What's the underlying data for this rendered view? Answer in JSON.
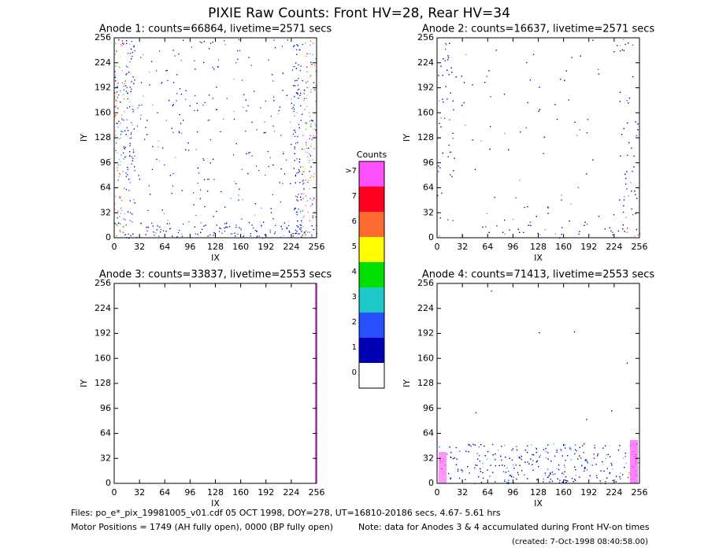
{
  "title": "PIXIE Raw Counts:  Front HV=28, Rear HV=34",
  "chart_data": [
    {
      "type": "heatmap",
      "title": "Anode 1: counts=66864, livetime=2571 secs",
      "xlabel": "IX",
      "ylabel": "IY",
      "xlim": [
        0,
        256
      ],
      "ylim": [
        0,
        256
      ],
      "xticks": [
        0,
        32,
        64,
        96,
        128,
        160,
        192,
        224,
        256
      ],
      "yticks": [
        0,
        32,
        64,
        96,
        128,
        160,
        192,
        224,
        256
      ]
    },
    {
      "type": "heatmap",
      "title": "Anode 2: counts=16637, livetime=2571 secs",
      "xlabel": "IX",
      "ylabel": "IY",
      "xlim": [
        0,
        256
      ],
      "ylim": [
        0,
        256
      ],
      "xticks": [
        0,
        32,
        64,
        96,
        128,
        160,
        192,
        224,
        256
      ],
      "yticks": [
        0,
        32,
        64,
        96,
        128,
        160,
        192,
        224,
        256
      ]
    },
    {
      "type": "heatmap",
      "title": "Anode 3: counts=33837, livetime=2553 secs",
      "xlabel": "IX",
      "ylabel": "IY",
      "xlim": [
        0,
        256
      ],
      "ylim": [
        0,
        256
      ],
      "xticks": [
        0,
        32,
        64,
        96,
        128,
        160,
        192,
        224,
        256
      ],
      "yticks": [
        0,
        32,
        64,
        96,
        128,
        160,
        192,
        224,
        256
      ]
    },
    {
      "type": "heatmap",
      "title": "Anode 4: counts=71413, livetime=2553 secs",
      "xlabel": "IX",
      "ylabel": "IY",
      "xlim": [
        0,
        256
      ],
      "ylim": [
        0,
        256
      ],
      "xticks": [
        0,
        32,
        64,
        96,
        128,
        160,
        192,
        224,
        256
      ],
      "yticks": [
        0,
        32,
        64,
        96,
        128,
        160,
        192,
        224,
        256
      ]
    }
  ],
  "colorbar": {
    "title": "Counts",
    "levels": [
      {
        "label": "0",
        "color": "#ffffff"
      },
      {
        "label": "1",
        "color": "#0000b4"
      },
      {
        "label": "2",
        "color": "#2850ff"
      },
      {
        "label": "3",
        "color": "#1ec8c8"
      },
      {
        "label": "4",
        "color": "#00e000"
      },
      {
        "label": "5",
        "color": "#ffff00"
      },
      {
        "label": "6",
        "color": "#ff6a30"
      },
      {
        "label": "7",
        "color": "#ff0020"
      },
      {
        "label": ">7",
        "color": "#ff50ff"
      }
    ]
  },
  "footer": {
    "files": "Files: po_e*_pix_19981005_v01.cdf    05 OCT 1998, DOY=278, UT=16810-20186 secs,  4.67- 5.61 hrs",
    "motor": "Motor Positions = 1749 (AH fully open), 0000 (BP fully open)",
    "note": "Note: data for Anodes 3 & 4 accumulated during Front HV-on times",
    "created": "(created:  7-Oct-1998 08:40:58.00)"
  }
}
